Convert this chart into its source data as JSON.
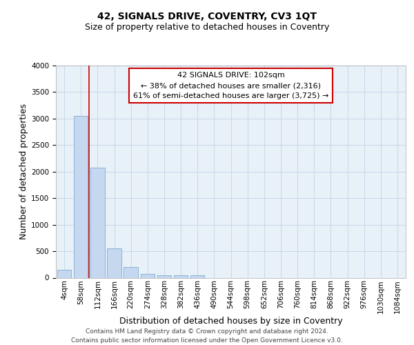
{
  "title": "42, SIGNALS DRIVE, COVENTRY, CV3 1QT",
  "subtitle": "Size of property relative to detached houses in Coventry",
  "xlabel": "Distribution of detached houses by size in Coventry",
  "ylabel": "Number of detached properties",
  "categories": [
    "4sqm",
    "58sqm",
    "112sqm",
    "166sqm",
    "220sqm",
    "274sqm",
    "328sqm",
    "382sqm",
    "436sqm",
    "490sqm",
    "544sqm",
    "598sqm",
    "652sqm",
    "706sqm",
    "760sqm",
    "814sqm",
    "868sqm",
    "922sqm",
    "976sqm",
    "1030sqm",
    "1084sqm"
  ],
  "values": [
    150,
    3050,
    2075,
    550,
    200,
    70,
    45,
    45,
    45,
    0,
    0,
    0,
    0,
    0,
    0,
    0,
    0,
    0,
    0,
    0,
    0
  ],
  "bar_color": "#c5d8f0",
  "bar_edgecolor": "#7aadd4",
  "grid_color": "#c8d8e8",
  "background_color": "#e8f0f8",
  "annotation_box_edgecolor": "#cc0000",
  "property_line_color": "#cc0000",
  "property_label": "42 SIGNALS DRIVE: 102sqm",
  "annotation_line1": "← 38% of detached houses are smaller (2,316)",
  "annotation_line2": "61% of semi-detached houses are larger (3,725) →",
  "footnote1": "Contains HM Land Registry data © Crown copyright and database right 2024.",
  "footnote2": "Contains public sector information licensed under the Open Government Licence v3.0.",
  "ylim": [
    0,
    4000
  ],
  "yticks": [
    0,
    500,
    1000,
    1500,
    2000,
    2500,
    3000,
    3500,
    4000
  ],
  "title_fontsize": 10,
  "subtitle_fontsize": 9,
  "ylabel_fontsize": 9,
  "xlabel_fontsize": 9,
  "tick_fontsize": 7.5,
  "annotation_fontsize": 8,
  "footnote_fontsize": 6.5
}
